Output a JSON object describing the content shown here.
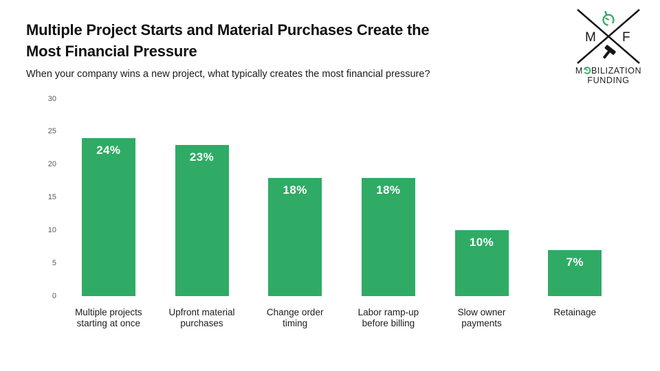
{
  "header": {
    "title_line1": "Multiple Project Starts and Material Purchases Create the",
    "title_line2": "Most Financial Pressure",
    "subtitle": "When your company wins a new project, what typically creates the most financial pressure?"
  },
  "logo": {
    "letter_left": "M",
    "letter_right": "F",
    "name_part1": "M",
    "name_part2": "BILIZATION",
    "name_line2": "FUNDING",
    "accent_color": "#3aa968",
    "ink_color": "#1f1f1f"
  },
  "chart_data": {
    "type": "bar",
    "title": "Multiple Project Starts and Material Purchases Create the Most Financial Pressure",
    "subtitle": "When your company wins a new project, what typically creates the most financial pressure?",
    "categories": [
      "Multiple projects starting at once",
      "Upfront material purchases",
      "Change order timing",
      "Labor ramp-up before billing",
      "Slow owner payments",
      "Retainage"
    ],
    "values": [
      24,
      23,
      18,
      18,
      10,
      7
    ],
    "data_labels": [
      "24%",
      "23%",
      "18%",
      "18%",
      "10%",
      "7%"
    ],
    "xlabel": "",
    "ylabel": "",
    "ylim": [
      0,
      30
    ],
    "yticks": [
      0,
      5,
      10,
      15,
      20,
      25,
      30
    ],
    "grid": false,
    "legend": false,
    "bar_color": "#2fab66",
    "data_label_color": "#ffffff",
    "tick_color": "#595959"
  }
}
